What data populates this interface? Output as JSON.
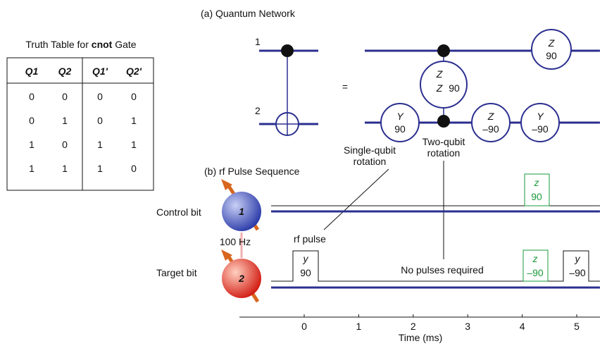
{
  "truth_table": {
    "title": {
      "prefix": "Truth Table for ",
      "bold": "cnot",
      "suffix": " Gate"
    },
    "headers": [
      "Q1",
      "Q2",
      "Q1'",
      "Q2'"
    ],
    "rows": [
      [
        0,
        0,
        0,
        0
      ],
      [
        0,
        1,
        0,
        1
      ],
      [
        1,
        0,
        1,
        1
      ],
      [
        1,
        1,
        1,
        0
      ]
    ]
  },
  "network": {
    "title": "(a) Quantum Network",
    "qubit_labels": [
      "1",
      "2"
    ],
    "equals": "=",
    "gates": {
      "z_top": {
        "axis": "Z",
        "angle": "90"
      },
      "zz": {
        "axis": "Z",
        "axis2": "Z",
        "angle": "90"
      },
      "y_first": {
        "axis": "Y",
        "angle": "90"
      },
      "z_bottom": {
        "axis": "Z",
        "angle": "–90"
      },
      "y_last": {
        "axis": "Y",
        "angle": "–90"
      }
    },
    "single_qubit_note": [
      "Single-qubit",
      "rotation"
    ],
    "two_qubit_note": [
      "Two-qubit",
      "rotation"
    ]
  },
  "pulses": {
    "title": "(b) rf Pulse Sequence",
    "control_label": "Control bit",
    "target_label": "Target bit",
    "coupling": "100 Hz",
    "spin_labels": [
      "1",
      "2"
    ],
    "rf_pulse": "rf pulse",
    "no_pulses": "No pulses required",
    "control_z": {
      "axis": "z",
      "angle": "90"
    },
    "target_y1": {
      "axis": "y",
      "angle": "90"
    },
    "target_z": {
      "axis": "z",
      "angle": "–90"
    },
    "target_y2": {
      "axis": "y",
      "angle": "–90"
    },
    "time_ticks": [
      0,
      1,
      2,
      3,
      4,
      5
    ],
    "time_label": "Time (ms)"
  }
}
